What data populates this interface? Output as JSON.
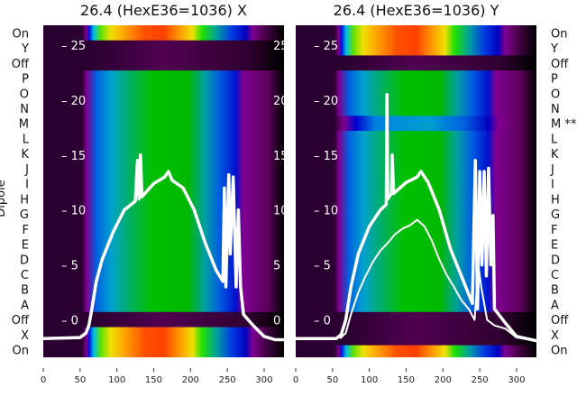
{
  "chart_data": [
    {
      "type": "heatmap",
      "title": "26.4 (HexE36=1036) X",
      "ylabel": "Dipole",
      "xlim": [
        0,
        327
      ],
      "xticks": [
        0,
        50,
        100,
        150,
        200,
        250,
        300
      ],
      "yticks_overlay": [
        0,
        5,
        10,
        15,
        20,
        25
      ],
      "ylim_overlay": [
        -3.4,
        26.8
      ],
      "rows": [
        {
          "label": "On",
          "kind": "rainbow"
        },
        {
          "label": "Y",
          "kind": "off"
        },
        {
          "label": "Off",
          "kind": "off"
        },
        {
          "label": "P",
          "kind": "dipole"
        },
        {
          "label": "O",
          "kind": "dipole"
        },
        {
          "label": "N",
          "kind": "dipole"
        },
        {
          "label": "M",
          "kind": "dipole"
        },
        {
          "label": "L",
          "kind": "dipole"
        },
        {
          "label": "K",
          "kind": "dipole"
        },
        {
          "label": "J",
          "kind": "dipole"
        },
        {
          "label": "I",
          "kind": "dipole"
        },
        {
          "label": "H",
          "kind": "dipole"
        },
        {
          "label": "G",
          "kind": "dipole"
        },
        {
          "label": "F",
          "kind": "dipole"
        },
        {
          "label": "E",
          "kind": "dipole"
        },
        {
          "label": "D",
          "kind": "dipole"
        },
        {
          "label": "C",
          "kind": "dipole"
        },
        {
          "label": "B",
          "kind": "dipole"
        },
        {
          "label": "A",
          "kind": "dipole"
        },
        {
          "label": "Off",
          "kind": "off"
        },
        {
          "label": "X",
          "kind": "rainbow"
        },
        {
          "label": "On",
          "kind": "rainbow"
        }
      ],
      "series": [
        {
          "name": "profile",
          "width": 3.5,
          "points": [
            [
              0,
              -1.7
            ],
            [
              50,
              -1.6
            ],
            [
              58,
              -1.2
            ],
            [
              62,
              -0.5
            ],
            [
              66,
              1
            ],
            [
              72,
              3.5
            ],
            [
              80,
              5.5
            ],
            [
              95,
              8
            ],
            [
              110,
              10
            ],
            [
              125,
              10.8
            ],
            [
              128,
              14.5
            ],
            [
              130,
              11
            ],
            [
              132,
              15
            ],
            [
              134,
              11.2
            ],
            [
              150,
              12.4
            ],
            [
              165,
              13
            ],
            [
              170,
              13.5
            ],
            [
              175,
              12.7
            ],
            [
              190,
              12
            ],
            [
              205,
              10
            ],
            [
              220,
              7
            ],
            [
              235,
              4.5
            ],
            [
              244,
              3.5
            ],
            [
              246,
              12
            ],
            [
              248,
              3
            ],
            [
              252,
              13.2
            ],
            [
              254,
              6
            ],
            [
              258,
              13
            ],
            [
              262,
              3
            ],
            [
              265,
              10
            ],
            [
              268,
              3
            ],
            [
              272,
              0.5
            ],
            [
              285,
              -0.5
            ],
            [
              300,
              -1.5
            ],
            [
              315,
              -1.8
            ],
            [
              327,
              -1.8
            ]
          ]
        }
      ]
    },
    {
      "type": "heatmap",
      "title": "26.4 (HexE36=1036) Y",
      "xlim": [
        0,
        327
      ],
      "xticks": [
        0,
        50,
        100,
        150,
        200,
        250,
        300
      ],
      "yticks_overlay": [
        0,
        5,
        10,
        15,
        20,
        25
      ],
      "ylim_overlay": [
        -3.4,
        26.8
      ],
      "rows": [
        {
          "label": "On",
          "kind": "rainbow"
        },
        {
          "label": "Y",
          "kind": "rainbow"
        },
        {
          "label": "Off",
          "kind": "off"
        },
        {
          "label": "P",
          "kind": "dipole"
        },
        {
          "label": "O",
          "kind": "dipole"
        },
        {
          "label": "N",
          "kind": "dipole"
        },
        {
          "label": "M **",
          "kind": "weak"
        },
        {
          "label": "L",
          "kind": "dipole"
        },
        {
          "label": "K",
          "kind": "dipole"
        },
        {
          "label": "J",
          "kind": "dipole"
        },
        {
          "label": "I",
          "kind": "dipole"
        },
        {
          "label": "H",
          "kind": "dipole"
        },
        {
          "label": "G",
          "kind": "dipole"
        },
        {
          "label": "F",
          "kind": "dipole"
        },
        {
          "label": "E",
          "kind": "dipole"
        },
        {
          "label": "D",
          "kind": "dipole"
        },
        {
          "label": "C",
          "kind": "dipole"
        },
        {
          "label": "B",
          "kind": "dipole"
        },
        {
          "label": "A",
          "kind": "dipole"
        },
        {
          "label": "Off",
          "kind": "off"
        },
        {
          "label": "X",
          "kind": "off"
        },
        {
          "label": "On",
          "kind": "off_rainbow"
        }
      ],
      "series": [
        {
          "name": "profile-main",
          "width": 3.5,
          "points": [
            [
              0,
              -1.7
            ],
            [
              55,
              -1.7
            ],
            [
              62,
              -1.3
            ],
            [
              68,
              0
            ],
            [
              75,
              3
            ],
            [
              85,
              6
            ],
            [
              100,
              8.5
            ],
            [
              115,
              10
            ],
            [
              123,
              10.5
            ],
            [
              124,
              20.5
            ],
            [
              125,
              11
            ],
            [
              130,
              11.5
            ],
            [
              131,
              15
            ],
            [
              133,
              11.5
            ],
            [
              150,
              12.5
            ],
            [
              165,
              13
            ],
            [
              170,
              13.5
            ],
            [
              180,
              12.5
            ],
            [
              195,
              10
            ],
            [
              210,
              6.5
            ],
            [
              225,
              4
            ],
            [
              240,
              1.5
            ],
            [
              244,
              14.5
            ],
            [
              247,
              1
            ],
            [
              250,
              13.5
            ],
            [
              253,
              5
            ],
            [
              256,
              13.5
            ],
            [
              259,
              4
            ],
            [
              262,
              13.8
            ],
            [
              265,
              5
            ],
            [
              268,
              9.5
            ],
            [
              270,
              1
            ],
            [
              285,
              -0.3
            ],
            [
              300,
              -1.5
            ],
            [
              327,
              -1.9
            ]
          ]
        },
        {
          "name": "profile-low",
          "width": 2,
          "points": [
            [
              60,
              -1.7
            ],
            [
              68,
              -1.2
            ],
            [
              75,
              0.5
            ],
            [
              85,
              2.5
            ],
            [
              95,
              4
            ],
            [
              105,
              5.3
            ],
            [
              115,
              6.3
            ],
            [
              125,
              7
            ],
            [
              135,
              7.8
            ],
            [
              145,
              8.3
            ],
            [
              155,
              8.6
            ],
            [
              165,
              9.1
            ],
            [
              175,
              8.5
            ],
            [
              185,
              7.2
            ],
            [
              195,
              5.5
            ],
            [
              205,
              4.1
            ],
            [
              215,
              3
            ],
            [
              225,
              1.8
            ],
            [
              235,
              1
            ],
            [
              243,
              0
            ],
            [
              248,
              5
            ],
            [
              252,
              3
            ],
            [
              260,
              0
            ],
            [
              270,
              -0.5
            ],
            [
              285,
              -0.8
            ],
            [
              300,
              -1.6
            ],
            [
              327,
              -1.9
            ]
          ]
        }
      ]
    }
  ],
  "colormaps": {
    "rainbow": [
      [
        0,
        "#2a0030"
      ],
      [
        0.16,
        "#2a0030"
      ],
      [
        0.18,
        "#800090"
      ],
      [
        0.19,
        "#0010e0"
      ],
      [
        0.21,
        "#00c0e0"
      ],
      [
        0.24,
        "#60e000"
      ],
      [
        0.28,
        "#f0e000"
      ],
      [
        0.34,
        "#ffa000"
      ],
      [
        0.42,
        "#ff5000"
      ],
      [
        0.5,
        "#ff4000"
      ],
      [
        0.56,
        "#ff9000"
      ],
      [
        0.62,
        "#f0e000"
      ],
      [
        0.66,
        "#20e000"
      ],
      [
        0.72,
        "#00a0a0"
      ],
      [
        0.78,
        "#0040e0"
      ],
      [
        0.84,
        "#0000c0"
      ],
      [
        0.87,
        "#800090"
      ],
      [
        0.93,
        "#400040"
      ],
      [
        1,
        "#000000"
      ]
    ],
    "dipole": [
      [
        0,
        "#2a0030"
      ],
      [
        0.16,
        "#2a0030"
      ],
      [
        0.18,
        "#800090"
      ],
      [
        0.22,
        "#0060e0"
      ],
      [
        0.28,
        "#00a0d0"
      ],
      [
        0.36,
        "#00b060"
      ],
      [
        0.45,
        "#00c000"
      ],
      [
        0.6,
        "#00b800"
      ],
      [
        0.67,
        "#00a0a0"
      ],
      [
        0.73,
        "#0060e0"
      ],
      [
        0.8,
        "#0010d0"
      ],
      [
        0.83,
        "#800090"
      ],
      [
        0.93,
        "#600060"
      ],
      [
        1,
        "#000000"
      ]
    ],
    "weak": [
      [
        0,
        "#2a0030"
      ],
      [
        0.16,
        "#2a0030"
      ],
      [
        0.2,
        "#800090"
      ],
      [
        0.25,
        "#0000d0"
      ],
      [
        0.33,
        "#0080e0"
      ],
      [
        0.55,
        "#00a0d0"
      ],
      [
        0.7,
        "#0060e0"
      ],
      [
        0.8,
        "#0000c0"
      ],
      [
        0.84,
        "#800090"
      ],
      [
        0.93,
        "#600060"
      ],
      [
        1,
        "#000000"
      ]
    ],
    "off": [
      [
        0,
        "#2a0030"
      ],
      [
        0.2,
        "#2a0030"
      ],
      [
        0.5,
        "#500050"
      ],
      [
        0.85,
        "#300030"
      ],
      [
        1,
        "#000000"
      ]
    ]
  }
}
